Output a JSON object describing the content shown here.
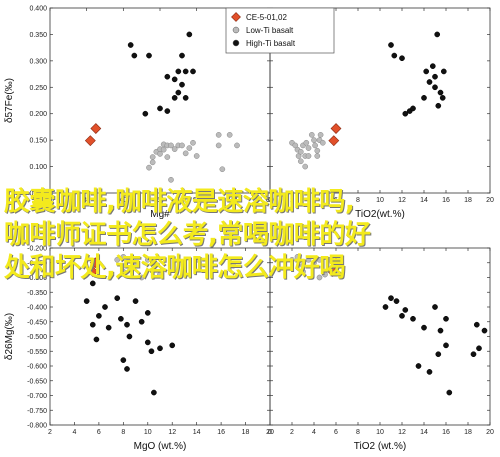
{
  "overlay_text": {
    "line1": "胶囊咖啡,咖啡液是速溶咖啡吗,",
    "line2": "咖啡师证书怎么考,常喝咖啡的好",
    "line3": "处和坏处,速溶咖啡怎么冲好喝"
  },
  "legend": {
    "entries": [
      {
        "name": "CE-5-01,02",
        "marker": "diamond",
        "color": "#e1502a"
      },
      {
        "name": "Low-Ti basalt",
        "marker": "circle",
        "color": "#bbbbbb"
      },
      {
        "name": "High-Ti basalt",
        "marker": "circle",
        "color": "#111111"
      }
    ]
  },
  "chart_data": [
    {
      "type": "scatter",
      "panel": "top-left",
      "xlabel": "Mg#",
      "ylabel": "δ57Fe(‰)",
      "xlim": [
        20,
        80
      ],
      "ylim": [
        0.05,
        0.4
      ],
      "xticks": [
        "20",
        "30",
        "40",
        "50",
        "60",
        "70",
        "80"
      ],
      "yticks": [
        "0.050",
        "0.100",
        "0.150",
        "0.200",
        "0.250",
        "0.300",
        "0.350",
        "0.400"
      ],
      "series": [
        {
          "name": "CE-5-01,02",
          "points": [
            [
              31,
              0.149
            ],
            [
              32.5,
              0.172
            ]
          ]
        },
        {
          "name": "Low-Ti basalt",
          "points": [
            [
              47,
              0.098
            ],
            [
              48,
              0.108
            ],
            [
              48,
              0.118
            ],
            [
              49,
              0.128
            ],
            [
              50,
              0.124
            ],
            [
              50,
              0.133
            ],
            [
              51,
              0.132
            ],
            [
              51,
              0.142
            ],
            [
              52,
              0.14
            ],
            [
              52,
              0.118
            ],
            [
              53,
              0.14
            ],
            [
              53,
              0.075
            ],
            [
              54,
              0.133
            ],
            [
              55,
              0.14
            ],
            [
              56,
              0.14
            ],
            [
              57,
              0.125
            ],
            [
              58,
              0.135
            ],
            [
              59,
              0.145
            ],
            [
              60,
              0.12
            ],
            [
              66,
              0.16
            ],
            [
              66,
              0.14
            ],
            [
              67,
              0.095
            ],
            [
              69,
              0.16
            ],
            [
              71,
              0.14
            ]
          ]
        },
        {
          "name": "High-Ti basalt",
          "points": [
            [
              42,
              0.33
            ],
            [
              43,
              0.31
            ],
            [
              47,
              0.31
            ],
            [
              46,
              0.2
            ],
            [
              50,
              0.21
            ],
            [
              52,
              0.27
            ],
            [
              52,
              0.205
            ],
            [
              54,
              0.265
            ],
            [
              54,
              0.23
            ],
            [
              55,
              0.28
            ],
            [
              55,
              0.24
            ],
            [
              56,
              0.31
            ],
            [
              56,
              0.255
            ],
            [
              57,
              0.28
            ],
            [
              57,
              0.23
            ],
            [
              58,
              0.35
            ],
            [
              59,
              0.28
            ]
          ]
        }
      ]
    },
    {
      "type": "scatter",
      "panel": "top-right",
      "xlabel": "TiO2(wt.%)",
      "ylabel": "",
      "xlim": [
        0,
        20
      ],
      "ylim": [
        0.05,
        0.4
      ],
      "xticks": [
        "0",
        "2",
        "4",
        "6",
        "8",
        "10",
        "12",
        "14",
        "16",
        "18",
        "20"
      ],
      "series": [
        {
          "name": "CE-5-01,02",
          "points": [
            [
              5.8,
              0.149
            ],
            [
              6.0,
              0.172
            ]
          ]
        },
        {
          "name": "Low-Ti basalt",
          "points": [
            [
              2.0,
              0.145
            ],
            [
              2.3,
              0.14
            ],
            [
              2.5,
              0.132
            ],
            [
              2.6,
              0.12
            ],
            [
              2.8,
              0.128
            ],
            [
              2.8,
              0.11
            ],
            [
              3.0,
              0.14
            ],
            [
              3.2,
              0.1
            ],
            [
              3.2,
              0.12
            ],
            [
              3.3,
              0.145
            ],
            [
              3.5,
              0.12
            ],
            [
              3.5,
              0.135
            ],
            [
              3.8,
              0.16
            ],
            [
              4.0,
              0.15
            ],
            [
              4.1,
              0.14
            ],
            [
              4.3,
              0.12
            ],
            [
              4.3,
              0.13
            ],
            [
              4.5,
              0.15
            ],
            [
              4.8,
              0.145
            ],
            [
              4.6,
              0.16
            ]
          ]
        },
        {
          "name": "High-Ti basalt",
          "points": [
            [
              11.0,
              0.33
            ],
            [
              11.3,
              0.31
            ],
            [
              12.0,
              0.305
            ],
            [
              12.3,
              0.2
            ],
            [
              12.7,
              0.205
            ],
            [
              13.0,
              0.21
            ],
            [
              14.0,
              0.23
            ],
            [
              14.2,
              0.28
            ],
            [
              14.5,
              0.26
            ],
            [
              14.8,
              0.29
            ],
            [
              15.0,
              0.27
            ],
            [
              15.0,
              0.25
            ],
            [
              15.2,
              0.35
            ],
            [
              15.3,
              0.215
            ],
            [
              15.5,
              0.24
            ],
            [
              15.7,
              0.23
            ],
            [
              15.8,
              0.28
            ]
          ]
        }
      ]
    },
    {
      "type": "scatter",
      "panel": "bottom-left",
      "xlabel": "MgO (wt.%)",
      "ylabel": "δ26Mg(‰)",
      "xlim": [
        2,
        20
      ],
      "ylim": [
        -0.8,
        -0.2
      ],
      "xticks": [
        "2",
        "4",
        "6",
        "8",
        "10",
        "12",
        "14",
        "16",
        "18",
        "20"
      ],
      "yticks": [
        "-0.200",
        "-0.250",
        "-0.300",
        "-0.350",
        "-0.400",
        "-0.450",
        "-0.500",
        "-0.550",
        "-0.600",
        "-0.650",
        "-0.700",
        "-0.750",
        "-0.800"
      ],
      "series": [
        {
          "name": "CE-5-01,02",
          "points": [
            [
              5.5,
              -0.28
            ],
            [
              5.7,
              -0.25
            ]
          ]
        },
        {
          "name": "Low-Ti basalt",
          "points": [
            [
              7.5,
              -0.24
            ],
            [
              8.0,
              -0.23
            ],
            [
              8.0,
              -0.26
            ],
            [
              8.5,
              -0.24
            ],
            [
              9.0,
              -0.25
            ],
            [
              10.0,
              -0.24
            ],
            [
              8.0,
              -0.28
            ],
            [
              9.5,
              -0.3
            ],
            [
              11.0,
              -0.29
            ],
            [
              14.0,
              -0.24
            ],
            [
              17.0,
              -0.26
            ]
          ]
        },
        {
          "name": "High-Ti basalt",
          "points": [
            [
              5.0,
              -0.38
            ],
            [
              5.5,
              -0.32
            ],
            [
              5.5,
              -0.46
            ],
            [
              5.8,
              -0.51
            ],
            [
              6.0,
              -0.43
            ],
            [
              6.5,
              -0.4
            ],
            [
              6.8,
              -0.47
            ],
            [
              7.5,
              -0.37
            ],
            [
              7.8,
              -0.44
            ],
            [
              8.0,
              -0.58
            ],
            [
              8.3,
              -0.61
            ],
            [
              8.3,
              -0.46
            ],
            [
              8.5,
              -0.5
            ],
            [
              9.0,
              -0.38
            ],
            [
              9.5,
              -0.45
            ],
            [
              10.0,
              -0.52
            ],
            [
              10.3,
              -0.55
            ],
            [
              10.0,
              -0.42
            ],
            [
              10.5,
              -0.69
            ],
            [
              11.0,
              -0.54
            ],
            [
              12.0,
              -0.53
            ]
          ]
        }
      ]
    },
    {
      "type": "scatter",
      "panel": "bottom-right",
      "xlabel": "TiO2 (wt.%)",
      "ylabel": "",
      "xlim": [
        0,
        20
      ],
      "ylim": [
        -0.8,
        -0.2
      ],
      "xticks": [
        "0",
        "2",
        "4",
        "6",
        "8",
        "10",
        "12",
        "14",
        "16",
        "18",
        "20"
      ],
      "series": [
        {
          "name": "CE-5-01,02",
          "points": [
            [
              5.7,
              -0.28
            ],
            [
              6.0,
              -0.25
            ]
          ]
        },
        {
          "name": "Low-Ti basalt",
          "points": [
            [
              2.0,
              -0.24
            ],
            [
              2.5,
              -0.23
            ],
            [
              3.0,
              -0.26
            ],
            [
              3.5,
              -0.24
            ],
            [
              4.0,
              -0.25
            ],
            [
              4.5,
              -0.24
            ],
            [
              3.0,
              -0.28
            ],
            [
              4.5,
              -0.3
            ],
            [
              5.0,
              -0.29
            ],
            [
              5.5,
              -0.24
            ]
          ]
        },
        {
          "name": "High-Ti basalt",
          "points": [
            [
              10.5,
              -0.4
            ],
            [
              11.0,
              -0.37
            ],
            [
              11.5,
              -0.38
            ],
            [
              12.0,
              -0.43
            ],
            [
              12.3,
              -0.41
            ],
            [
              13.0,
              -0.44
            ],
            [
              13.5,
              -0.6
            ],
            [
              14.0,
              -0.47
            ],
            [
              14.5,
              -0.62
            ],
            [
              15.0,
              -0.4
            ],
            [
              15.3,
              -0.56
            ],
            [
              15.5,
              -0.48
            ],
            [
              16.0,
              -0.44
            ],
            [
              16.0,
              -0.53
            ],
            [
              16.3,
              -0.69
            ],
            [
              18.5,
              -0.56
            ],
            [
              18.8,
              -0.46
            ],
            [
              19.0,
              -0.54
            ],
            [
              19.5,
              -0.48
            ]
          ]
        }
      ]
    }
  ]
}
